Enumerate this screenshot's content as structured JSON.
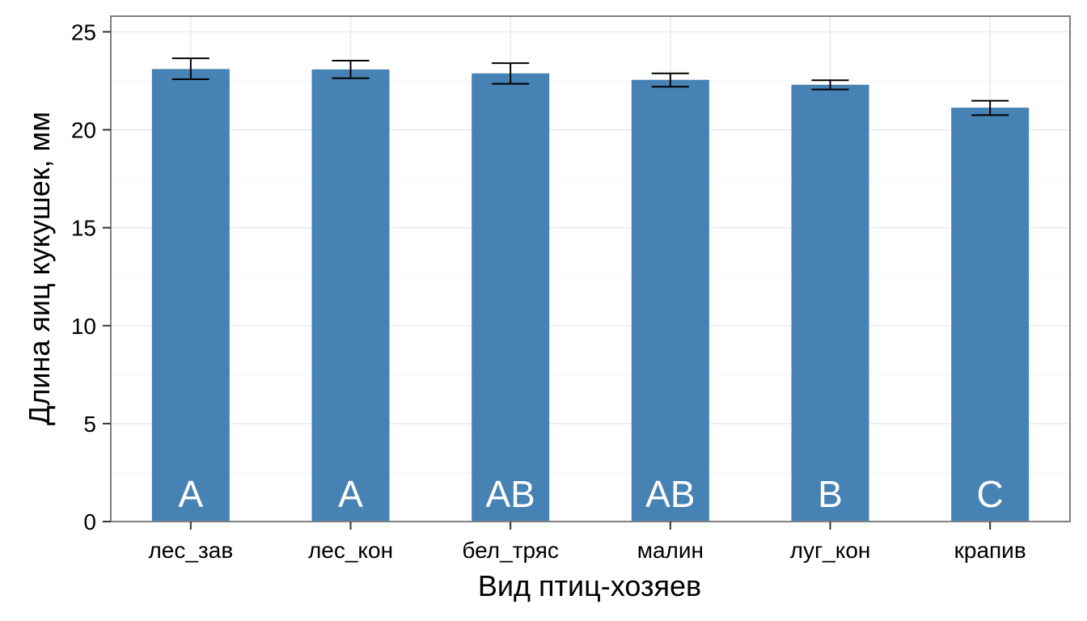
{
  "chart_data": {
    "type": "bar",
    "title": "",
    "xlabel": "Вид птиц-хозяев",
    "ylabel": "Длина яиц кукушек, мм",
    "categories": [
      "лес_зав",
      "лес_кон",
      "бел_тряс",
      "малин",
      "луг_кон",
      "крапив"
    ],
    "values": [
      23.1,
      23.08,
      22.88,
      22.55,
      22.3,
      21.13
    ],
    "error_low": [
      22.58,
      22.63,
      22.35,
      22.2,
      22.06,
      20.75
    ],
    "error_high": [
      23.65,
      23.53,
      23.4,
      22.88,
      22.53,
      21.48
    ],
    "group_labels": [
      "A",
      "A",
      "AB",
      "AB",
      "B",
      "C"
    ],
    "ylim": [
      0,
      25.8
    ],
    "yticks": [
      0,
      5,
      10,
      15,
      20,
      25
    ],
    "grid": true,
    "legend": "none",
    "colors": {
      "bar": "#4682b4",
      "panel_border": "#7f7f7f",
      "grid_major": "#ebebeb",
      "grid_minor": "#f5f5f5",
      "error_bar": "#000000",
      "bar_label": "#ffffff"
    }
  }
}
